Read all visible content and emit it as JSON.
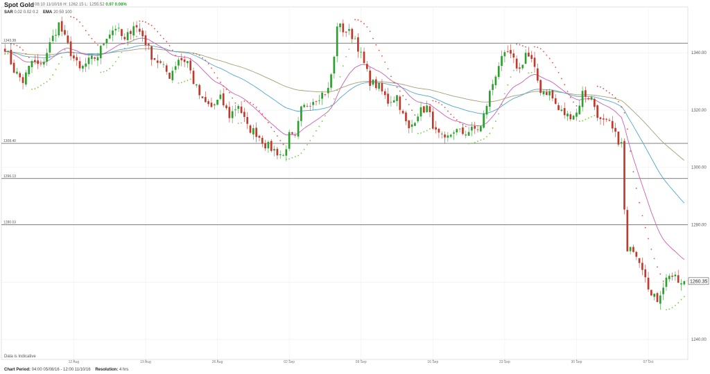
{
  "header": {
    "title": "Spot Gold",
    "quote": "08:10 11/10/16  H: 1262.15  L: 1255.52",
    "change": "0.97 0.08%"
  },
  "indicators": {
    "sar_label": "SAR",
    "sar_params": "0.02  0.02  0.2",
    "ema_label": "EMA",
    "ema_params": "20  50  100"
  },
  "note": "Data is Indicative",
  "footer": {
    "period_label": "Chart Period:",
    "period_value": "04:00 05/08/16 - 12:00 11/10/16",
    "resolution_label": "Resolution:",
    "resolution_value": "4 hrs"
  },
  "chart_data": {
    "type": "candlestick",
    "ylim": [
      1233,
      1356
    ],
    "y_ticks": [
      1240,
      1260,
      1280,
      1300,
      1320,
      1340
    ],
    "y_tick_labels": [
      "1240.00",
      "1260.00",
      "1280.00",
      "1300.00",
      "1320.00",
      "1340.00"
    ],
    "x_tick_labels": [
      "12 Aug",
      "19 Aug",
      "26 Aug",
      "02 Sep",
      "09 Sep",
      "16 Sep",
      "23 Sep",
      "30 Sep",
      "07 Oct"
    ],
    "x_tick_index": [
      23,
      47,
      71,
      95,
      119,
      143,
      167,
      191,
      215
    ],
    "candle_count": 228,
    "last_value": "1260.35",
    "horizontal_lines": [
      {
        "value": 1343.38,
        "label": "1343.38"
      },
      {
        "value": 1308.4,
        "label": "1308.40"
      },
      {
        "value": 1296.13,
        "label": "1296.13"
      },
      {
        "value": 1280.03,
        "label": "1280.03"
      }
    ],
    "colors": {
      "up": "#2ca02c",
      "down": "#c0392b",
      "ema20": "#d05cb5",
      "ema50": "#4fa6cf",
      "ema100": "#a39f74",
      "sar_up": "#7ac943",
      "sar_down": "#e74c3c",
      "hline": "#555555"
    },
    "path_points": [
      [
        0,
        1342
      ],
      [
        3,
        1334
      ],
      [
        6,
        1330
      ],
      [
        9,
        1337
      ],
      [
        12,
        1335
      ],
      [
        15,
        1343
      ],
      [
        18,
        1350
      ],
      [
        20,
        1345
      ],
      [
        22,
        1340
      ],
      [
        25,
        1334
      ],
      [
        28,
        1337
      ],
      [
        31,
        1339
      ],
      [
        34,
        1346
      ],
      [
        37,
        1349
      ],
      [
        40,
        1344
      ],
      [
        43,
        1350
      ],
      [
        46,
        1346
      ],
      [
        49,
        1339
      ],
      [
        52,
        1336
      ],
      [
        55,
        1332
      ],
      [
        58,
        1338
      ],
      [
        61,
        1337
      ],
      [
        63,
        1330
      ],
      [
        66,
        1323
      ],
      [
        69,
        1321
      ],
      [
        72,
        1324
      ],
      [
        75,
        1318
      ],
      [
        78,
        1322
      ],
      [
        81,
        1314
      ],
      [
        84,
        1312
      ],
      [
        87,
        1308
      ],
      [
        90,
        1306
      ],
      [
        93,
        1304
      ],
      [
        95,
        1311
      ],
      [
        97,
        1310
      ],
      [
        99,
        1320
      ],
      [
        102,
        1323
      ],
      [
        105,
        1325
      ],
      [
        108,
        1327
      ],
      [
        110,
        1338
      ],
      [
        111,
        1350
      ],
      [
        113,
        1348
      ],
      [
        115,
        1347
      ],
      [
        117,
        1345
      ],
      [
        118,
        1342
      ],
      [
        120,
        1336
      ],
      [
        122,
        1330
      ],
      [
        125,
        1328
      ],
      [
        128,
        1323
      ],
      [
        131,
        1325
      ],
      [
        133,
        1318
      ],
      [
        135,
        1313
      ],
      [
        138,
        1319
      ],
      [
        141,
        1321
      ],
      [
        144,
        1312
      ],
      [
        147,
        1309
      ],
      [
        150,
        1313
      ],
      [
        153,
        1312
      ],
      [
        156,
        1313
      ],
      [
        159,
        1314
      ],
      [
        162,
        1326
      ],
      [
        165,
        1336
      ],
      [
        168,
        1340
      ],
      [
        170,
        1337
      ],
      [
        172,
        1334
      ],
      [
        174,
        1340
      ],
      [
        176,
        1337
      ],
      [
        179,
        1327
      ],
      [
        182,
        1326
      ],
      [
        185,
        1320
      ],
      [
        188,
        1318
      ],
      [
        191,
        1319
      ],
      [
        193,
        1326
      ],
      [
        196,
        1324
      ],
      [
        199,
        1316
      ],
      [
        202,
        1315
      ],
      [
        204,
        1311
      ],
      [
        206,
        1308
      ],
      [
        207,
        1285
      ],
      [
        208,
        1270
      ],
      [
        210,
        1272
      ],
      [
        212,
        1268
      ],
      [
        214,
        1263
      ],
      [
        216,
        1255
      ],
      [
        218,
        1254
      ],
      [
        220,
        1259
      ],
      [
        222,
        1263
      ],
      [
        224,
        1261
      ],
      [
        226,
        1259
      ],
      [
        227,
        1260
      ]
    ]
  }
}
